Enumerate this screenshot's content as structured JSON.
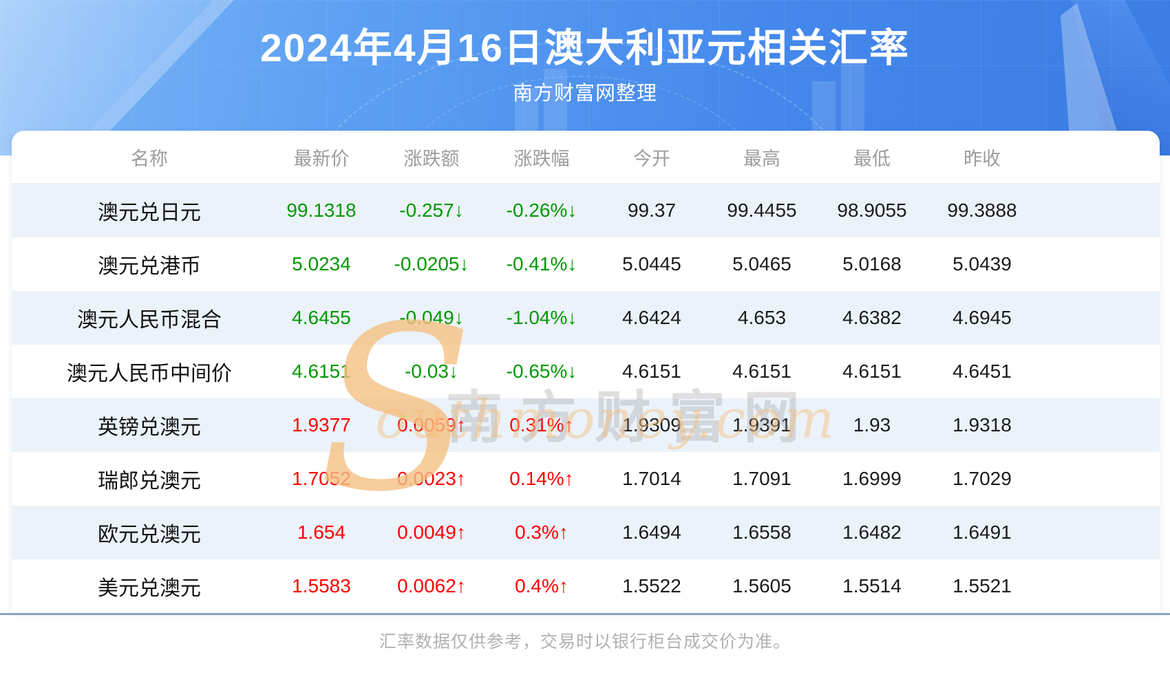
{
  "header": {
    "title": "2024年4月16日澳大利亚元相关汇率",
    "subtitle": "南方财富网整理"
  },
  "watermark": {
    "s": "S",
    "cn": "南方财富网",
    "en": "outhmoney.com"
  },
  "table": {
    "headers": [
      "名称",
      "最新价",
      "涨跌额",
      "涨跌幅",
      "今开",
      "最高",
      "最低",
      "昨收"
    ],
    "rows": [
      {
        "name": "澳元兑日元",
        "last": "99.1318",
        "change": "-0.257↓",
        "change_pct": "-0.26%↓",
        "open": "99.37",
        "high": "99.4455",
        "low": "98.9055",
        "prev_close": "99.3888",
        "trend": "down"
      },
      {
        "name": "澳元兑港币",
        "last": "5.0234",
        "change": "-0.0205↓",
        "change_pct": "-0.41%↓",
        "open": "5.0445",
        "high": "5.0465",
        "low": "5.0168",
        "prev_close": "5.0439",
        "trend": "down"
      },
      {
        "name": "澳元人民币混合",
        "last": "4.6455",
        "change": "-0.049↓",
        "change_pct": "-1.04%↓",
        "open": "4.6424",
        "high": "4.653",
        "low": "4.6382",
        "prev_close": "4.6945",
        "trend": "down"
      },
      {
        "name": "澳元人民币中间价",
        "last": "4.6151",
        "change": "-0.03↓",
        "change_pct": "-0.65%↓",
        "open": "4.6151",
        "high": "4.6151",
        "low": "4.6151",
        "prev_close": "4.6451",
        "trend": "down"
      },
      {
        "name": "英镑兑澳元",
        "last": "1.9377",
        "change": "0.0059↑",
        "change_pct": "0.31%↑",
        "open": "1.9309",
        "high": "1.9391",
        "low": "1.93",
        "prev_close": "1.9318",
        "trend": "up"
      },
      {
        "name": "瑞郎兑澳元",
        "last": "1.7052",
        "change": "0.0023↑",
        "change_pct": "0.14%↑",
        "open": "1.7014",
        "high": "1.7091",
        "low": "1.6999",
        "prev_close": "1.7029",
        "trend": "up"
      },
      {
        "name": "欧元兑澳元",
        "last": "1.654",
        "change": "0.0049↑",
        "change_pct": "0.3%↑",
        "open": "1.6494",
        "high": "1.6558",
        "low": "1.6482",
        "prev_close": "1.6491",
        "trend": "up"
      },
      {
        "name": "美元兑澳元",
        "last": "1.5583",
        "change": "0.0062↑",
        "change_pct": "0.4%↑",
        "open": "1.5522",
        "high": "1.5605",
        "low": "1.5514",
        "prev_close": "1.5521",
        "trend": "up"
      }
    ]
  },
  "footer": {
    "note": "汇率数据仅供参考，交易时以银行柜台成交价为准。"
  },
  "colors": {
    "up_red": "#fe0000",
    "down_green": "#019801",
    "row_stripe": "#ebf2fa",
    "header_text_gray": "#9c9c9c",
    "divider_slate": "#8ba3be",
    "banner_blue": "#4488ec"
  }
}
